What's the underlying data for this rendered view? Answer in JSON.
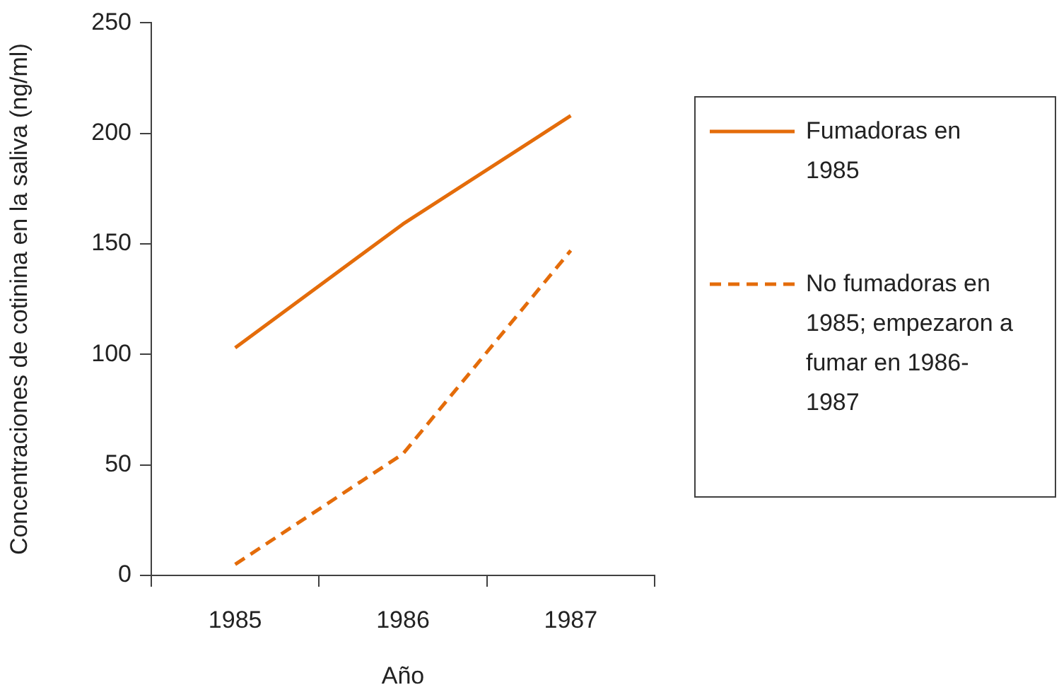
{
  "chart_data": {
    "type": "line",
    "xlabel": "Año",
    "ylabel": "Concentraciones de cotinina en la saliva (ng/ml)",
    "categories": [
      "1985",
      "1986",
      "1987"
    ],
    "ylim": [
      0,
      250
    ],
    "yticks": [
      0,
      50,
      100,
      150,
      200,
      250
    ],
    "grid": false,
    "legend": "right",
    "marker": "none",
    "series": [
      {
        "name": "Fumadoras en 1985",
        "color": "#e46c0a",
        "line_style": "solid",
        "values": [
          103,
          159,
          208
        ]
      },
      {
        "name": "No fumadoras en 1985; empezaron a fumar en 1986-1987",
        "color": "#e46c0a",
        "line_style": "dashed",
        "values": [
          5,
          55,
          147
        ]
      }
    ]
  }
}
